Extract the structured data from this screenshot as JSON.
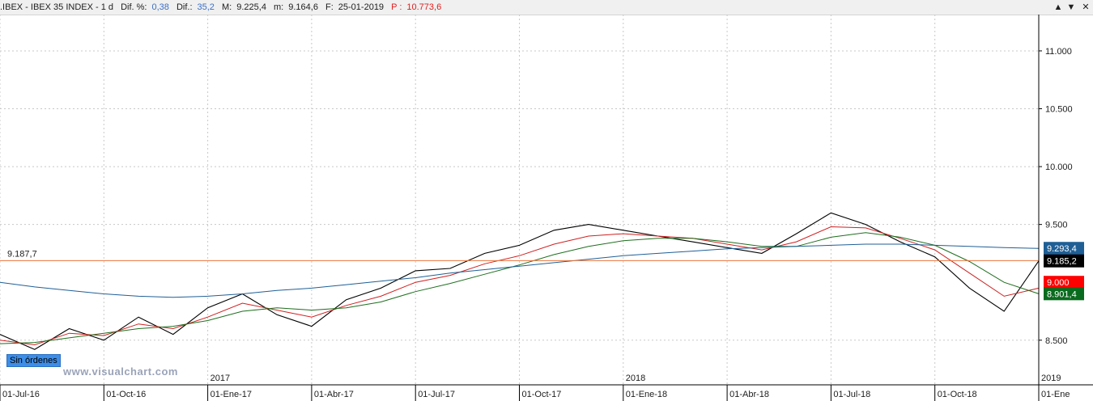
{
  "header": {
    "symbol": ".IBEX - IBEX 35 INDEX - 1 d",
    "dif_pct_label": "Dif. %:",
    "dif_pct_value": "0,38",
    "dif_label": "Dif.:",
    "dif_value": "35,2",
    "max_label": "M:",
    "max_value": "9.225,4",
    "min_label": "m:",
    "min_value": "9.164,6",
    "date_label": "F:",
    "date_value": "25-01-2019",
    "p_label": "P :",
    "p_value": "10.773,6"
  },
  "window_buttons": [
    "▲",
    "▼",
    "✕"
  ],
  "status_badge": "Sin órdenes",
  "watermark": "www.visualchart.com",
  "horizontal_line": {
    "label": "9.187,7",
    "value": 9187.7,
    "color": "#e8743b"
  },
  "price_badges": [
    {
      "text": "9.293,4",
      "value": 9293.4,
      "color": "#1f5f96"
    },
    {
      "text": "9.185,2",
      "value": 9185.2,
      "color": "#000000"
    },
    {
      "text": "9.000",
      "value": 9000,
      "color": "#ff0000"
    },
    {
      "text": "8.901,4",
      "value": 8901.4,
      "color": "#0a6b1e"
    }
  ],
  "chart_data": {
    "type": "line",
    "title": "",
    "ylim": [
      8240,
      11300
    ],
    "y_ticks": [
      {
        "value": 11000,
        "label": "11.000"
      },
      {
        "value": 10500,
        "label": "10.500"
      },
      {
        "value": 10000,
        "label": "10.000"
      },
      {
        "value": 9500,
        "label": "9.500"
      },
      {
        "value": 8500,
        "label": "8.500"
      }
    ],
    "x_ticks": [
      {
        "index": 0,
        "label": "01-Jul-16"
      },
      {
        "index": 3,
        "label": "01-Oct-16"
      },
      {
        "index": 6,
        "label": "01-Ene-17"
      },
      {
        "index": 9,
        "label": "01-Abr-17"
      },
      {
        "index": 12,
        "label": "01-Jul-17"
      },
      {
        "index": 15,
        "label": "01-Oct-17"
      },
      {
        "index": 18,
        "label": "01-Ene-18"
      },
      {
        "index": 21,
        "label": "01-Abr-18"
      },
      {
        "index": 24,
        "label": "01-Jul-18"
      },
      {
        "index": 27,
        "label": "01-Oct-18"
      },
      {
        "index": 30,
        "label": "01-Ene"
      }
    ],
    "year_labels": [
      {
        "index": 6,
        "label": "2017"
      },
      {
        "index": 18,
        "label": "2018"
      },
      {
        "index": 30,
        "label": "2019"
      }
    ],
    "x_count": 31,
    "grid": true,
    "series": [
      {
        "color": "#000000",
        "values": [
          8550,
          8420,
          8600,
          8500,
          8700,
          8550,
          8780,
          8900,
          8720,
          8620,
          8850,
          8950,
          9100,
          9120,
          9250,
          9320,
          9450,
          9500,
          9450,
          9400,
          9350,
          9300,
          9250,
          9420,
          9600,
          9500,
          9350,
          9220,
          8950,
          8750,
          9185
        ]
      },
      {
        "color": "#d02020",
        "values": [
          8500,
          8460,
          8560,
          8540,
          8640,
          8600,
          8700,
          8820,
          8760,
          8700,
          8800,
          8880,
          9000,
          9060,
          9160,
          9230,
          9330,
          9400,
          9420,
          9400,
          9380,
          9330,
          9280,
          9350,
          9480,
          9470,
          9380,
          9280,
          9080,
          8880,
          8950
        ]
      },
      {
        "color": "#1e6e1e",
        "values": [
          8470,
          8480,
          8520,
          8560,
          8600,
          8620,
          8670,
          8750,
          8780,
          8760,
          8780,
          8830,
          8920,
          8990,
          9070,
          9150,
          9240,
          9310,
          9360,
          9380,
          9380,
          9350,
          9310,
          9310,
          9390,
          9430,
          9390,
          9320,
          9180,
          9000,
          8901
        ]
      },
      {
        "color": "#1f5f96",
        "values": [
          9000,
          8960,
          8930,
          8900,
          8880,
          8870,
          8880,
          8900,
          8930,
          8950,
          8980,
          9010,
          9040,
          9080,
          9110,
          9140,
          9170,
          9200,
          9230,
          9250,
          9270,
          9290,
          9300,
          9310,
          9320,
          9330,
          9330,
          9320,
          9310,
          9300,
          9293
        ]
      }
    ]
  }
}
